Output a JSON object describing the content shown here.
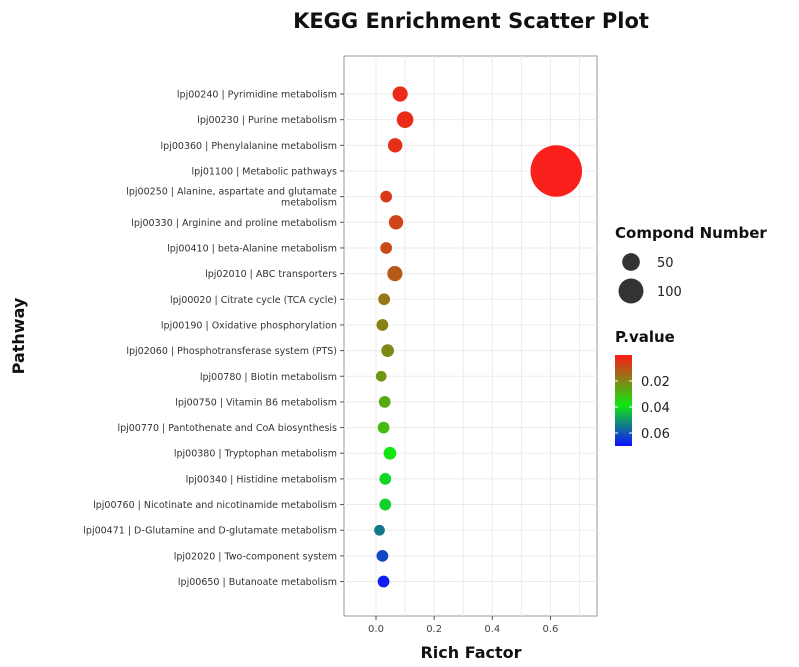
{
  "chart_data": {
    "type": "scatter",
    "title": "KEGG Enrichment Scatter Plot",
    "xlabel": "Rich Factor",
    "ylabel": "Pathway",
    "xlim": [
      -0.11,
      0.76
    ],
    "xticks": [
      0.0,
      0.2,
      0.4,
      0.6
    ],
    "xtick_labels": [
      "0.0",
      "0.2",
      "0.4",
      "0.6"
    ],
    "grid": true,
    "legend_position": "right",
    "categories": [
      [
        "lpj00240 | Pyrimidine metabolism"
      ],
      [
        "lpj00230 | Purine metabolism"
      ],
      [
        "lpj00360 | Phenylalanine metabolism"
      ],
      [
        "lpj01100 | Metabolic pathways"
      ],
      [
        "lpj00250 | Alanine, aspartate and glutamate",
        "metabolism"
      ],
      [
        "lpj00330 | Arginine and proline metabolism"
      ],
      [
        "lpj00410 | beta-Alanine metabolism"
      ],
      [
        "lpj02010 | ABC transporters"
      ],
      [
        "lpj00020 | Citrate cycle (TCA cycle)"
      ],
      [
        "lpj00190 | Oxidative phosphorylation"
      ],
      [
        "lpj02060 | Phosphotransferase system (PTS)"
      ],
      [
        "lpj00780 | Biotin metabolism"
      ],
      [
        "lpj00750 | Vitamin B6 metabolism"
      ],
      [
        "lpj00770 | Pantothenate and CoA biosynthesis"
      ],
      [
        "lpj00380 | Tryptophan metabolism"
      ],
      [
        "lpj00340 | Histidine metabolism"
      ],
      [
        "lpj00760 | Nicotinate and nicotinamide metabolism"
      ],
      [
        "lpj00471 | D-Glutamine and D-glutamate metabolism"
      ],
      [
        "lpj02020 | Two-component system"
      ],
      [
        "lpj00650 | Butanoate metabolism"
      ]
    ],
    "points": [
      {
        "x": 0.083,
        "count": 10,
        "pvalue": 0.003
      },
      {
        "x": 0.1,
        "count": 12,
        "pvalue": 0.003
      },
      {
        "x": 0.066,
        "count": 9,
        "pvalue": 0.004
      },
      {
        "x": 0.62,
        "count": 115,
        "pvalue": 0.001
      },
      {
        "x": 0.035,
        "count": 6,
        "pvalue": 0.006
      },
      {
        "x": 0.069,
        "count": 9,
        "pvalue": 0.008
      },
      {
        "x": 0.035,
        "count": 6,
        "pvalue": 0.009
      },
      {
        "x": 0.065,
        "count": 10,
        "pvalue": 0.012
      },
      {
        "x": 0.028,
        "count": 6,
        "pvalue": 0.017
      },
      {
        "x": 0.022,
        "count": 6,
        "pvalue": 0.019
      },
      {
        "x": 0.04,
        "count": 7,
        "pvalue": 0.021
      },
      {
        "x": 0.018,
        "count": 5,
        "pvalue": 0.023
      },
      {
        "x": 0.03,
        "count": 6,
        "pvalue": 0.027
      },
      {
        "x": 0.026,
        "count": 6,
        "pvalue": 0.03
      },
      {
        "x": 0.048,
        "count": 7,
        "pvalue": 0.038
      },
      {
        "x": 0.032,
        "count": 6,
        "pvalue": 0.041
      },
      {
        "x": 0.032,
        "count": 6,
        "pvalue": 0.042
      },
      {
        "x": 0.012,
        "count": 5,
        "pvalue": 0.055
      },
      {
        "x": 0.022,
        "count": 6,
        "pvalue": 0.062
      },
      {
        "x": 0.026,
        "count": 6,
        "pvalue": 0.068
      }
    ],
    "size_legend": {
      "title": "Compond Number",
      "entries": [
        {
          "value": 50,
          "label": "50"
        },
        {
          "value": 100,
          "label": "100"
        }
      ]
    },
    "color_legend": {
      "title": "P.value",
      "range": [
        0.0,
        0.07
      ],
      "ticks": [
        0.02,
        0.04,
        0.06
      ],
      "tick_labels": [
        "0.02",
        "0.04",
        "0.06"
      ],
      "colors": [
        "#ff1a1a",
        "#10e810",
        "#1010ff"
      ]
    }
  }
}
